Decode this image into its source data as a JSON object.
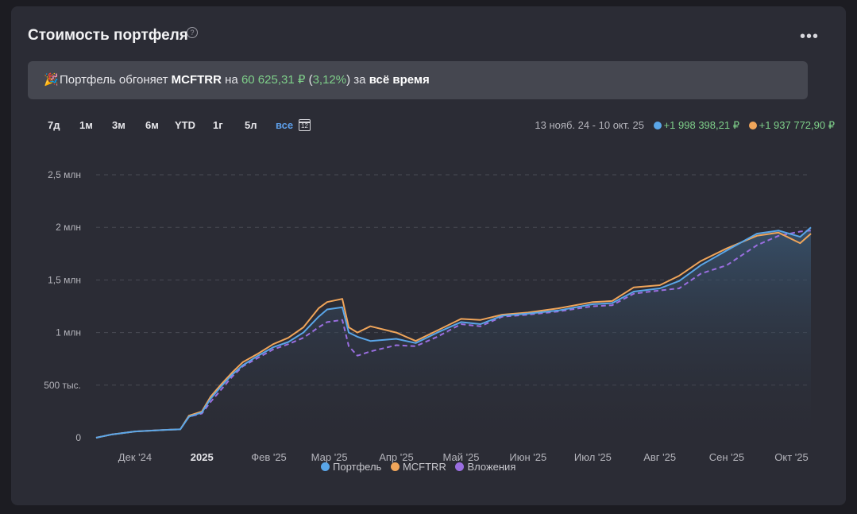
{
  "header": {
    "title": "Стоимость портфеля",
    "help_icon": "question-circle-icon",
    "menu_icon": "more-horizontal-icon"
  },
  "banner": {
    "icon": "party-popper-icon",
    "prefix": "Портфель обгоняет",
    "benchmark": "MCFTRR",
    "mid": "на",
    "amount": "60 625,31 ₽",
    "pct_open": "(",
    "pct": "3,12%",
    "pct_close": ")",
    "suffix": "за",
    "period": "всё время"
  },
  "periods": [
    "7д",
    "1м",
    "3м",
    "6м",
    "YTD",
    "1г",
    "5л",
    "все"
  ],
  "active_period": "все",
  "date_range": "13 нояб. 24 - 10 окт. 25",
  "series_totals": [
    {
      "value": "+1 998 398,21 ₽",
      "color": "#5aa6e8"
    },
    {
      "value": "+1 937 772,90 ₽",
      "color": "#f0a55a"
    }
  ],
  "legend": [
    {
      "label": "Портфель",
      "color": "#5aa6e8"
    },
    {
      "label": "MCFTRR",
      "color": "#f0a55a"
    },
    {
      "label": "Вложения",
      "color": "#9a6ee0"
    }
  ],
  "chart_data": {
    "type": "line",
    "y_ticks": [
      {
        "value": 0,
        "label": "0"
      },
      {
        "value": 500000,
        "label": "500 тыс."
      },
      {
        "value": 1000000,
        "label": "1 млн"
      },
      {
        "value": 1500000,
        "label": "1,5 млн"
      },
      {
        "value": 2000000,
        "label": "2 млн"
      },
      {
        "value": 2500000,
        "label": "2,5 млн"
      }
    ],
    "ylim": [
      0,
      2500000
    ],
    "xlim": [
      "2024-11-13",
      "2025-10-10"
    ],
    "x_ticks": [
      {
        "date": "2024-12-01",
        "label": "Дек '24"
      },
      {
        "date": "2025-01-01",
        "label": "2025",
        "bold": true
      },
      {
        "date": "2025-02-01",
        "label": "Фев '25"
      },
      {
        "date": "2025-03-01",
        "label": "Мар '25"
      },
      {
        "date": "2025-04-01",
        "label": "Апр '25"
      },
      {
        "date": "2025-05-01",
        "label": "Май '25"
      },
      {
        "date": "2025-06-01",
        "label": "Июн '25"
      },
      {
        "date": "2025-07-01",
        "label": "Июл '25"
      },
      {
        "date": "2025-08-01",
        "label": "Авг '25"
      },
      {
        "date": "2025-09-01",
        "label": "Сен '25"
      },
      {
        "date": "2025-10-01",
        "label": "Окт '25"
      }
    ],
    "grid": "horizontal-dashed",
    "series": [
      {
        "name": "Портфель",
        "color": "#5aa6e8",
        "area": true,
        "points": [
          [
            "2024-11-13",
            0
          ],
          [
            "2024-11-20",
            30000
          ],
          [
            "2024-12-01",
            60000
          ],
          [
            "2024-12-15",
            75000
          ],
          [
            "2024-12-22",
            80000
          ],
          [
            "2024-12-26",
            200000
          ],
          [
            "2025-01-01",
            240000
          ],
          [
            "2025-01-05",
            370000
          ],
          [
            "2025-01-10",
            490000
          ],
          [
            "2025-01-15",
            600000
          ],
          [
            "2025-01-20",
            690000
          ],
          [
            "2025-01-27",
            780000
          ],
          [
            "2025-02-03",
            860000
          ],
          [
            "2025-02-10",
            910000
          ],
          [
            "2025-02-17",
            1000000
          ],
          [
            "2025-02-24",
            1150000
          ],
          [
            "2025-02-28",
            1220000
          ],
          [
            "2025-03-07",
            1240000
          ],
          [
            "2025-03-10",
            1000000
          ],
          [
            "2025-03-14",
            960000
          ],
          [
            "2025-03-20",
            920000
          ],
          [
            "2025-04-01",
            940000
          ],
          [
            "2025-04-10",
            900000
          ],
          [
            "2025-04-20",
            1000000
          ],
          [
            "2025-05-01",
            1100000
          ],
          [
            "2025-05-10",
            1080000
          ],
          [
            "2025-05-20",
            1160000
          ],
          [
            "2025-06-01",
            1180000
          ],
          [
            "2025-06-15",
            1210000
          ],
          [
            "2025-07-01",
            1270000
          ],
          [
            "2025-07-10",
            1280000
          ],
          [
            "2025-07-20",
            1390000
          ],
          [
            "2025-08-01",
            1420000
          ],
          [
            "2025-08-10",
            1490000
          ],
          [
            "2025-08-20",
            1640000
          ],
          [
            "2025-09-01",
            1780000
          ],
          [
            "2025-09-15",
            1940000
          ],
          [
            "2025-09-25",
            1970000
          ],
          [
            "2025-10-05",
            1910000
          ],
          [
            "2025-10-10",
            2000000
          ]
        ]
      },
      {
        "name": "MCFTRR",
        "color": "#f0a55a",
        "area": false,
        "points": [
          [
            "2024-11-13",
            0
          ],
          [
            "2024-11-20",
            30000
          ],
          [
            "2024-12-01",
            60000
          ],
          [
            "2024-12-15",
            75000
          ],
          [
            "2024-12-22",
            80000
          ],
          [
            "2024-12-26",
            210000
          ],
          [
            "2025-01-01",
            250000
          ],
          [
            "2025-01-05",
            390000
          ],
          [
            "2025-01-10",
            510000
          ],
          [
            "2025-01-15",
            620000
          ],
          [
            "2025-01-20",
            720000
          ],
          [
            "2025-01-27",
            800000
          ],
          [
            "2025-02-03",
            890000
          ],
          [
            "2025-02-10",
            950000
          ],
          [
            "2025-02-17",
            1050000
          ],
          [
            "2025-02-24",
            1230000
          ],
          [
            "2025-02-28",
            1290000
          ],
          [
            "2025-03-07",
            1320000
          ],
          [
            "2025-03-10",
            1050000
          ],
          [
            "2025-03-14",
            1000000
          ],
          [
            "2025-03-20",
            1060000
          ],
          [
            "2025-04-01",
            1000000
          ],
          [
            "2025-04-10",
            920000
          ],
          [
            "2025-04-20",
            1020000
          ],
          [
            "2025-05-01",
            1130000
          ],
          [
            "2025-05-10",
            1120000
          ],
          [
            "2025-05-20",
            1170000
          ],
          [
            "2025-06-01",
            1190000
          ],
          [
            "2025-06-15",
            1230000
          ],
          [
            "2025-07-01",
            1290000
          ],
          [
            "2025-07-10",
            1300000
          ],
          [
            "2025-07-20",
            1430000
          ],
          [
            "2025-08-01",
            1450000
          ],
          [
            "2025-08-10",
            1540000
          ],
          [
            "2025-08-20",
            1680000
          ],
          [
            "2025-09-01",
            1800000
          ],
          [
            "2025-09-15",
            1920000
          ],
          [
            "2025-09-25",
            1950000
          ],
          [
            "2025-10-05",
            1850000
          ],
          [
            "2025-10-10",
            1940000
          ]
        ]
      },
      {
        "name": "Вложения",
        "color": "#9a6ee0",
        "dashed": true,
        "area": false,
        "points": [
          [
            "2024-11-13",
            0
          ],
          [
            "2024-11-20",
            30000
          ],
          [
            "2024-12-01",
            60000
          ],
          [
            "2024-12-15",
            75000
          ],
          [
            "2024-12-22",
            80000
          ],
          [
            "2024-12-26",
            200000
          ],
          [
            "2025-01-01",
            230000
          ],
          [
            "2025-01-05",
            340000
          ],
          [
            "2025-01-10",
            460000
          ],
          [
            "2025-01-15",
            580000
          ],
          [
            "2025-01-20",
            680000
          ],
          [
            "2025-01-27",
            760000
          ],
          [
            "2025-02-03",
            840000
          ],
          [
            "2025-02-10",
            890000
          ],
          [
            "2025-02-17",
            950000
          ],
          [
            "2025-02-24",
            1050000
          ],
          [
            "2025-02-28",
            1100000
          ],
          [
            "2025-03-07",
            1120000
          ],
          [
            "2025-03-10",
            870000
          ],
          [
            "2025-03-14",
            780000
          ],
          [
            "2025-03-20",
            820000
          ],
          [
            "2025-04-01",
            880000
          ],
          [
            "2025-04-10",
            870000
          ],
          [
            "2025-04-20",
            960000
          ],
          [
            "2025-05-01",
            1080000
          ],
          [
            "2025-05-10",
            1060000
          ],
          [
            "2025-05-20",
            1150000
          ],
          [
            "2025-06-01",
            1170000
          ],
          [
            "2025-06-15",
            1200000
          ],
          [
            "2025-07-01",
            1250000
          ],
          [
            "2025-07-10",
            1260000
          ],
          [
            "2025-07-20",
            1370000
          ],
          [
            "2025-08-01",
            1400000
          ],
          [
            "2025-08-10",
            1420000
          ],
          [
            "2025-08-20",
            1560000
          ],
          [
            "2025-09-01",
            1640000
          ],
          [
            "2025-09-15",
            1830000
          ],
          [
            "2025-09-25",
            1920000
          ],
          [
            "2025-10-05",
            1960000
          ],
          [
            "2025-10-10",
            1970000
          ]
        ]
      }
    ]
  }
}
